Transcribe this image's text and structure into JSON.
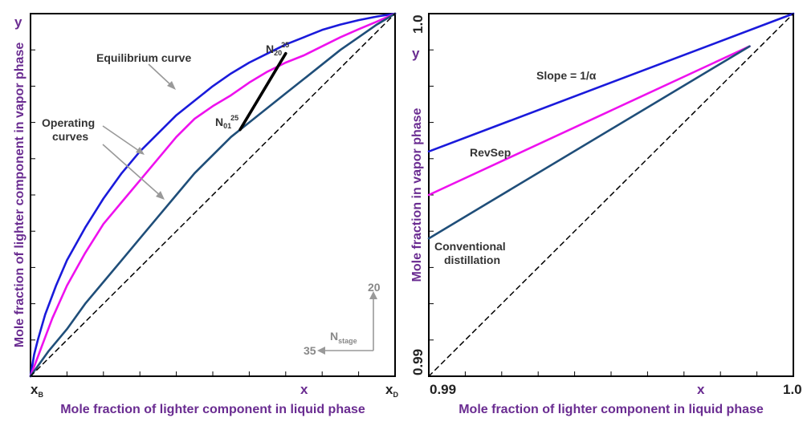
{
  "colors": {
    "equilibrium": "#1a1adb",
    "revsep": "#ee11ee",
    "conventional": "#1f4e79",
    "diagonal": "#000000",
    "stage_segment": "#000000",
    "axis_title": "#6a2c91",
    "annotation_arrow": "#999999"
  },
  "chart_data": [
    {
      "type": "line",
      "xlabel": "Mole fraction of lighter component in liquid phase",
      "ylabel": "Mole fraction of lighter component in vapor phase",
      "x_symbol": "x",
      "y_symbol": "y",
      "xlim": [
        0,
        1
      ],
      "ylim": [
        0,
        1
      ],
      "tick_labels": {
        "x_left": {
          "main": "x",
          "sub": "B"
        },
        "x_right": {
          "main": "x",
          "sub": "D"
        }
      },
      "series": [
        {
          "name": "Equilibrium curve",
          "points": [
            [
              0,
              0
            ],
            [
              0.01,
              0.06
            ],
            [
              0.02,
              0.1
            ],
            [
              0.04,
              0.17
            ],
            [
              0.07,
              0.25
            ],
            [
              0.1,
              0.32
            ],
            [
              0.15,
              0.41
            ],
            [
              0.2,
              0.49
            ],
            [
              0.25,
              0.56
            ],
            [
              0.3,
              0.62
            ],
            [
              0.35,
              0.67
            ],
            [
              0.4,
              0.72
            ],
            [
              0.45,
              0.76
            ],
            [
              0.5,
              0.8
            ],
            [
              0.55,
              0.835
            ],
            [
              0.6,
              0.865
            ],
            [
              0.65,
              0.89
            ],
            [
              0.7,
              0.915
            ],
            [
              0.75,
              0.935
            ],
            [
              0.8,
              0.955
            ],
            [
              0.85,
              0.97
            ],
            [
              0.9,
              0.982
            ],
            [
              0.95,
              0.992
            ],
            [
              1,
              1
            ]
          ]
        },
        {
          "name": "RevSep operating curve",
          "points": [
            [
              0,
              0
            ],
            [
              0.03,
              0.08
            ],
            [
              0.06,
              0.16
            ],
            [
              0.1,
              0.25
            ],
            [
              0.15,
              0.34
            ],
            [
              0.2,
              0.42
            ],
            [
              0.25,
              0.48
            ],
            [
              0.3,
              0.54
            ],
            [
              0.35,
              0.6
            ],
            [
              0.4,
              0.66
            ],
            [
              0.45,
              0.71
            ],
            [
              0.5,
              0.745
            ],
            [
              0.55,
              0.775
            ],
            [
              0.6,
              0.81
            ],
            [
              0.65,
              0.84
            ],
            [
              0.7,
              0.865
            ],
            [
              0.75,
              0.885
            ],
            [
              0.8,
              0.91
            ],
            [
              0.85,
              0.935
            ],
            [
              0.9,
              0.957
            ],
            [
              0.95,
              0.978
            ],
            [
              1,
              1
            ]
          ]
        },
        {
          "name": "Conventional operating curve",
          "points": [
            [
              0,
              0
            ],
            [
              0.05,
              0.07
            ],
            [
              0.1,
              0.13
            ],
            [
              0.15,
              0.2
            ],
            [
              0.2,
              0.26
            ],
            [
              0.25,
              0.32
            ],
            [
              0.3,
              0.38
            ],
            [
              0.35,
              0.44
            ],
            [
              0.4,
              0.5
            ],
            [
              0.45,
              0.56
            ],
            [
              0.5,
              0.61
            ],
            [
              0.55,
              0.66
            ],
            [
              0.6,
              0.7
            ],
            [
              0.65,
              0.74
            ],
            [
              0.7,
              0.78
            ],
            [
              0.75,
              0.82
            ],
            [
              0.8,
              0.86
            ],
            [
              0.85,
              0.9
            ],
            [
              0.9,
              0.935
            ],
            [
              0.95,
              0.97
            ],
            [
              1,
              1
            ]
          ]
        },
        {
          "name": "Diagonal y = x",
          "points": [
            [
              0,
              0
            ],
            [
              1,
              1
            ]
          ]
        },
        {
          "name": "Stage segment",
          "points": [
            [
              0.575,
              0.68
            ],
            [
              0.7,
              0.89
            ]
          ]
        }
      ],
      "annotations": {
        "equilibrium_label": "Equilibrium curve",
        "operating_label_line1": "Operating",
        "operating_label_line2": "curves",
        "n01": {
          "main": "N",
          "sub": "01",
          "sup": "25"
        },
        "n20": {
          "main": "N",
          "sub": "20",
          "sup": "25"
        },
        "nstage": {
          "main": "N",
          "sub": "stage"
        },
        "nstage_up_value": "20",
        "nstage_left_value": "35"
      }
    },
    {
      "type": "line",
      "xlabel": "Mole fraction of lighter component in liquid phase",
      "ylabel": "Mole fraction in vapor phase",
      "x_symbol": "x",
      "y_symbol": "y",
      "xlim": [
        0.99,
        1.0
      ],
      "ylim": [
        0.99,
        1.0
      ],
      "x_tick_labels": [
        "0.99",
        "1.0"
      ],
      "y_tick_labels": [
        "0.99",
        "1.0"
      ],
      "series": [
        {
          "name": "Equilibrium (Slope = 1/α)",
          "points": [
            [
              0.99,
              0.9962
            ],
            [
              1.0,
              1.0
            ]
          ]
        },
        {
          "name": "RevSep",
          "points": [
            [
              0.99,
              0.995
            ],
            [
              0.9988,
              0.9991
            ]
          ]
        },
        {
          "name": "Conventional distillation",
          "points": [
            [
              0.99,
              0.9938
            ],
            [
              0.9988,
              0.9991
            ]
          ]
        },
        {
          "name": "Diagonal y = x",
          "points": [
            [
              0.99,
              0.99
            ],
            [
              1.0,
              1.0
            ]
          ]
        }
      ],
      "annotations": {
        "slope_label": "Slope = 1/α",
        "revsep_label": "RevSep",
        "conventional_line1": "Conventional",
        "conventional_line2": "distillation"
      }
    }
  ]
}
